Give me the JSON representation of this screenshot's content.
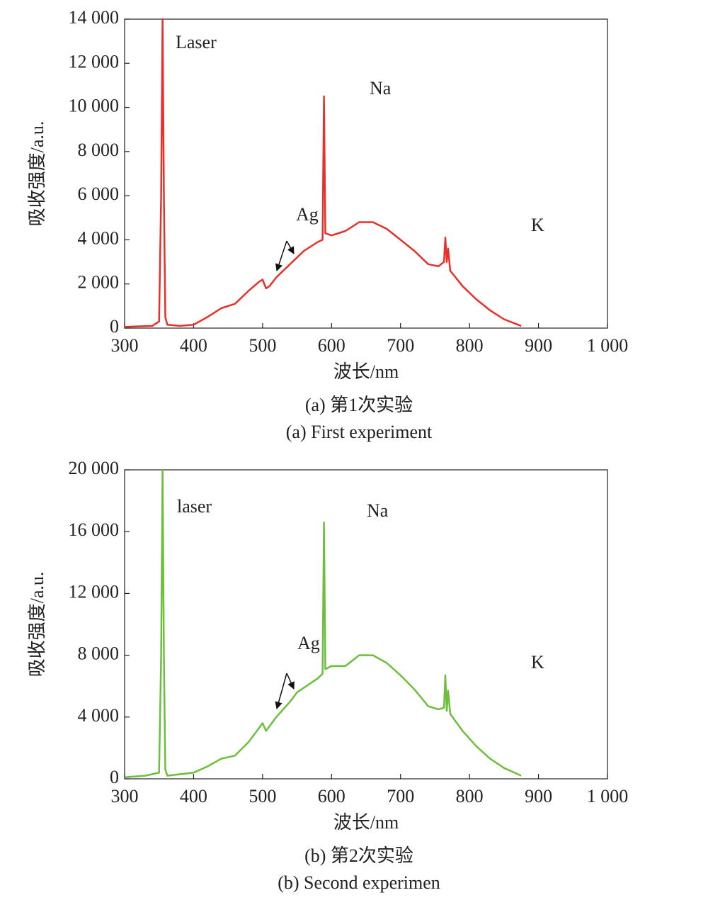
{
  "chart_data": [
    {
      "type": "line",
      "xlabel": "波长/nm",
      "ylabel": "吸收强度/a.u.",
      "caption": "(a) 第1次实验",
      "caption_en": "(a) First experiment",
      "annotations": [
        "Laser",
        "Na",
        "Ag",
        "K"
      ],
      "xlim": [
        300,
        1000
      ],
      "xticks": [
        300,
        400,
        500,
        600,
        700,
        800,
        900,
        {
          "value": 1000,
          "label": "1 000"
        }
      ],
      "ylim": [
        0,
        14000
      ],
      "yticks": [
        0,
        {
          "value": 2000,
          "label": "2 000"
        },
        {
          "value": 4000,
          "label": "4 000"
        },
        {
          "value": 6000,
          "label": "6 000"
        },
        {
          "value": 8000,
          "label": "8 000"
        },
        {
          "value": 10000,
          "label": "10 000"
        },
        {
          "value": 12000,
          "label": "12 000"
        },
        {
          "value": 14000,
          "label": "14 000"
        }
      ],
      "x": [
        300,
        320,
        340,
        350,
        353,
        355,
        357,
        359,
        362,
        380,
        400,
        420,
        440,
        460,
        480,
        495,
        500,
        505,
        510,
        520,
        540,
        550,
        560,
        580,
        587,
        589,
        591,
        600,
        620,
        640,
        660,
        680,
        700,
        720,
        740,
        755,
        763,
        765,
        767,
        769,
        772,
        790,
        810,
        830,
        850,
        875
      ],
      "series": [
        {
          "color": "#e8302a",
          "values": [
            50,
            80,
            100,
            300,
            6000,
            14000,
            6000,
            500,
            150,
            100,
            150,
            500,
            900,
            1100,
            1700,
            2100,
            2200,
            1800,
            1900,
            2300,
            2900,
            3200,
            3500,
            3900,
            4000,
            10500,
            4300,
            4200,
            4400,
            4800,
            4800,
            4500,
            4000,
            3500,
            2900,
            2800,
            3000,
            4100,
            3000,
            3600,
            2600,
            1900,
            1300,
            800,
            400,
            100
          ]
        }
      ]
    },
    {
      "type": "line",
      "xlabel": "波长/nm",
      "ylabel": "吸收强度/a.u.",
      "caption": "(b) 第2次实验",
      "caption_en": "(b) Second experimen",
      "annotations": [
        "laser",
        "Na",
        "Ag",
        "K"
      ],
      "xlim": [
        300,
        1000
      ],
      "xticks": [
        300,
        400,
        500,
        600,
        700,
        800,
        900,
        {
          "value": 1000,
          "label": "1 000"
        }
      ],
      "ylim": [
        0,
        20000
      ],
      "yticks": [
        0,
        {
          "value": 4000,
          "label": "4 000"
        },
        {
          "value": 8000,
          "label": "8 000"
        },
        {
          "value": 12000,
          "label": "12 000"
        },
        {
          "value": 16000,
          "label": "16 000"
        },
        {
          "value": 20000,
          "label": "20 000"
        }
      ],
      "x": [
        300,
        330,
        340,
        350,
        353,
        355,
        357,
        359,
        362,
        400,
        420,
        440,
        460,
        480,
        495,
        500,
        505,
        520,
        540,
        550,
        580,
        587,
        589,
        591,
        600,
        620,
        640,
        660,
        680,
        700,
        720,
        740,
        755,
        763,
        765,
        767,
        769,
        772,
        790,
        810,
        830,
        850,
        875
      ],
      "series": [
        {
          "color": "#6cbf3a",
          "values": [
            100,
            200,
            300,
            400,
            8000,
            20000,
            8000,
            600,
            200,
            400,
            800,
            1300,
            1500,
            2400,
            3300,
            3600,
            3100,
            4000,
            5000,
            5600,
            6500,
            6800,
            16600,
            7100,
            7300,
            7300,
            8000,
            8000,
            7500,
            6700,
            5800,
            4700,
            4500,
            4600,
            6700,
            4400,
            5700,
            4200,
            3100,
            2100,
            1300,
            700,
            200
          ]
        }
      ]
    }
  ]
}
